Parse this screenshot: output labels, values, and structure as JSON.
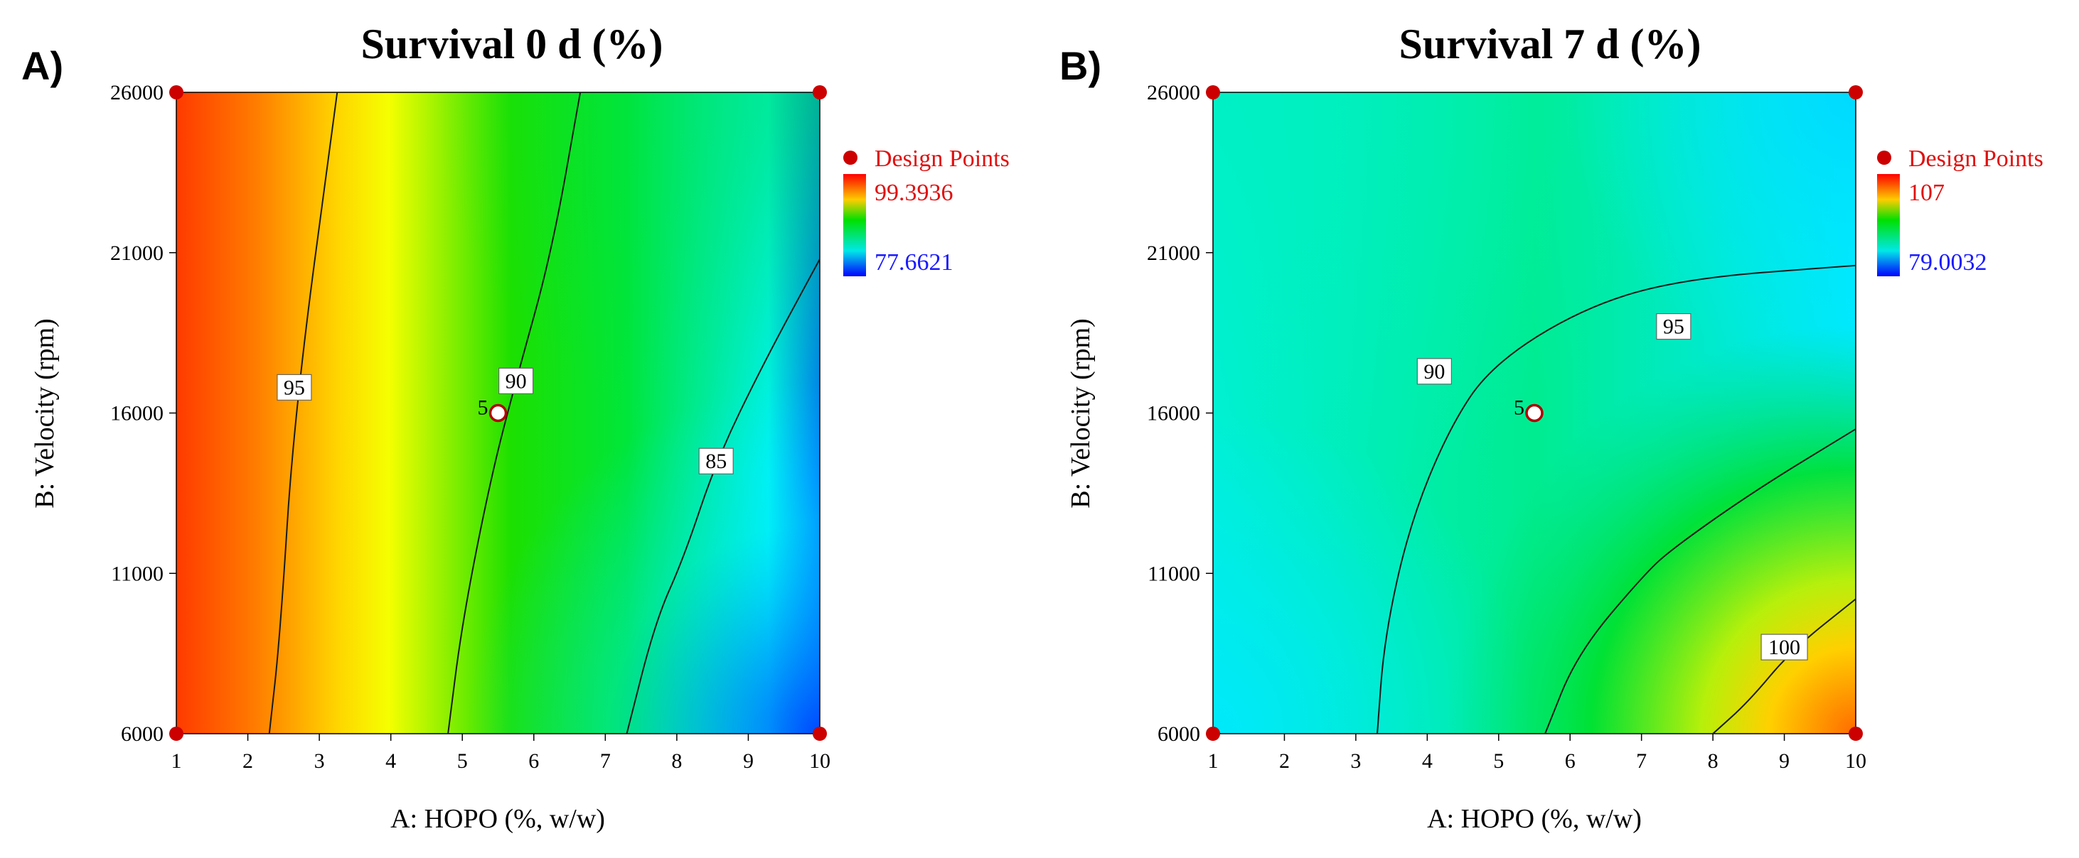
{
  "chart_data": [
    {
      "type": "heatmap",
      "panel_label": "A)",
      "title": "Survival 0 d (%)",
      "xlabel": "A: HOPO (%, w/w)",
      "ylabel": "B: Velocity (rpm)",
      "xlim": [
        1,
        10
      ],
      "ylim": [
        6000,
        26000
      ],
      "x_ticks": [
        "1",
        "2",
        "3",
        "4",
        "5",
        "6",
        "7",
        "8",
        "9",
        "10"
      ],
      "y_ticks": [
        "6000",
        "11000",
        "16000",
        "21000",
        "26000"
      ],
      "legend": {
        "title": "Design Points",
        "high": "99.3936",
        "low": "77.6621"
      },
      "value_range": [
        77.6621,
        99.3936
      ],
      "surface_corners": {
        "x1_y6000": 99.2,
        "x10_y6000": 77.7,
        "x1_y26000": 97.9,
        "x10_y26000": 85.3
      },
      "contours": [
        {
          "level": "95",
          "points": [
            [
              2.3,
              6000
            ],
            [
              2.45,
              9000
            ],
            [
              2.65,
              16000
            ],
            [
              3.25,
              26000
            ]
          ],
          "label_at": [
            2.65,
            16800
          ]
        },
        {
          "level": "90",
          "points": [
            [
              4.8,
              6000
            ],
            [
              5.0,
              9500
            ],
            [
              5.4,
              14000
            ],
            [
              5.75,
              17000
            ],
            [
              6.25,
              21000
            ],
            [
              6.65,
              26000
            ]
          ],
          "label_at": [
            5.75,
            17000
          ]
        },
        {
          "level": "85",
          "points": [
            [
              7.3,
              6000
            ],
            [
              7.7,
              9500
            ],
            [
              8.1,
              11500
            ],
            [
              8.55,
              14500
            ],
            [
              9.2,
              17500
            ],
            [
              10.0,
              20800
            ]
          ],
          "label_at": [
            8.55,
            14500
          ]
        }
      ],
      "design_points": [
        {
          "x": 1,
          "y": 6000
        },
        {
          "x": 10,
          "y": 6000
        },
        {
          "x": 1,
          "y": 26000
        },
        {
          "x": 10,
          "y": 26000
        }
      ],
      "center_point": {
        "x": 5.5,
        "y": 16000,
        "label": "5"
      }
    },
    {
      "type": "heatmap",
      "panel_label": "B)",
      "title": "Survival 7 d (%)",
      "xlabel": "A: HOPO (%, w/w)",
      "ylabel": "B: Velocity (rpm)",
      "xlim": [
        1,
        10
      ],
      "ylim": [
        6000,
        26000
      ],
      "x_ticks": [
        "1",
        "2",
        "3",
        "4",
        "5",
        "6",
        "7",
        "8",
        "9",
        "10"
      ],
      "y_ticks": [
        "6000",
        "11000",
        "16000",
        "21000",
        "26000"
      ],
      "legend": {
        "title": "Design Points",
        "high": "107",
        "low": "79.0032"
      },
      "value_range": [
        79.0032,
        107
      ],
      "contours": [
        {
          "level": "90",
          "points": [
            [
              3.3,
              6000
            ],
            [
              3.4,
              9000
            ],
            [
              3.75,
              12500
            ],
            [
              4.3,
              15500
            ],
            [
              4.9,
              17500
            ],
            [
              6.2,
              19300
            ],
            [
              7.6,
              20200
            ],
            [
              10.0,
              20600
            ]
          ],
          "label_at": [
            4.1,
            17300
          ]
        },
        {
          "level": "95",
          "points": [
            [
              5.65,
              6000
            ],
            [
              6.1,
              8500
            ],
            [
              7.05,
              11000
            ],
            [
              7.45,
              11800
            ],
            [
              8.6,
              13600
            ],
            [
              10.0,
              15500
            ]
          ],
          "label_at": [
            7.45,
            18700
          ]
        },
        {
          "level": "100",
          "points": [
            [
              8.0,
              6000
            ],
            [
              8.5,
              7000
            ],
            [
              9.1,
              8600
            ],
            [
              10.0,
              10200
            ]
          ],
          "label_at": [
            9.0,
            8700
          ]
        }
      ],
      "design_points": [
        {
          "x": 1,
          "y": 6000
        },
        {
          "x": 10,
          "y": 6000
        },
        {
          "x": 1,
          "y": 26000
        },
        {
          "x": 10,
          "y": 26000
        }
      ],
      "center_point": {
        "x": 5.5,
        "y": 16000,
        "label": "5"
      }
    }
  ]
}
